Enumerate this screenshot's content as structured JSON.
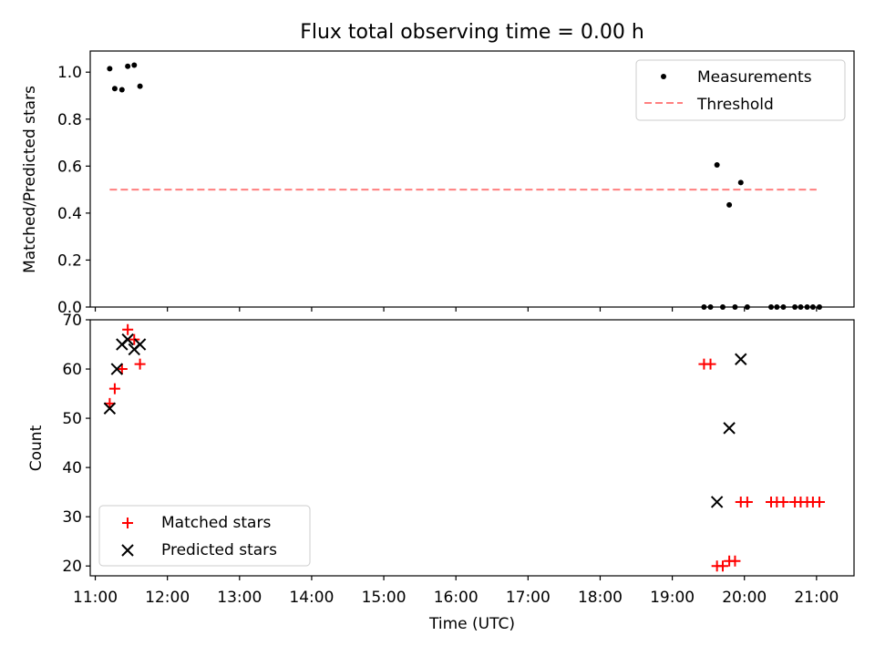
{
  "chart_data": {
    "title": "Flux total observing time = 0.00 h",
    "xlabel": "Time (UTC)",
    "x_ticks": [
      "11:00",
      "12:00",
      "13:00",
      "14:00",
      "15:00",
      "16:00",
      "17:00",
      "18:00",
      "19:00",
      "20:00",
      "21:00"
    ],
    "x_range_hours": [
      10.93,
      21.52
    ],
    "colors": {
      "measurement": "#000000",
      "threshold": "#ff7f7f",
      "matched": "#ff0000",
      "predicted": "#000000"
    },
    "panels": [
      {
        "type": "scatter",
        "ylabel": "Matched/Predicted stars",
        "ylim": [
          0,
          1.09
        ],
        "yticks": [
          0.0,
          0.2,
          0.4,
          0.6,
          0.8,
          1.0
        ],
        "ytick_labels": [
          "0.0",
          "0.2",
          "0.4",
          "0.6",
          "0.8",
          "1.0"
        ],
        "legend_position": "top-right",
        "series": [
          {
            "name": "Measurements",
            "marker": "dot",
            "points": [
              [
                11.2,
                1.015
              ],
              [
                11.27,
                0.93
              ],
              [
                11.37,
                0.925
              ],
              [
                11.45,
                1.025
              ],
              [
                11.54,
                1.03
              ],
              [
                11.62,
                0.94
              ],
              [
                19.44,
                0.0
              ],
              [
                19.53,
                0.0
              ],
              [
                19.62,
                0.605
              ],
              [
                19.7,
                0.0
              ],
              [
                19.79,
                0.435
              ],
              [
                19.87,
                0.0
              ],
              [
                19.95,
                0.53
              ],
              [
                20.04,
                0.0
              ],
              [
                20.37,
                0.0
              ],
              [
                20.45,
                0.0
              ],
              [
                20.54,
                0.0
              ],
              [
                20.7,
                0.0
              ],
              [
                20.78,
                0.0
              ],
              [
                20.87,
                0.0
              ],
              [
                20.95,
                0.0
              ],
              [
                21.04,
                0.0
              ]
            ]
          },
          {
            "name": "Threshold",
            "marker": "dashed-line",
            "points": [
              [
                11.2,
                0.5
              ],
              [
                21.0,
                0.5
              ]
            ]
          }
        ]
      },
      {
        "type": "scatter",
        "ylabel": "Count",
        "ylim": [
          18,
          70
        ],
        "yticks": [
          20,
          30,
          40,
          50,
          60,
          70
        ],
        "ytick_labels": [
          "20",
          "30",
          "40",
          "50",
          "60",
          "70"
        ],
        "legend_position": "bottom-left",
        "series": [
          {
            "name": "Matched stars",
            "marker": "plus",
            "points": [
              [
                11.2,
                53
              ],
              [
                11.27,
                56
              ],
              [
                11.37,
                60
              ],
              [
                11.45,
                68
              ],
              [
                11.54,
                66
              ],
              [
                11.62,
                61
              ],
              [
                19.44,
                61
              ],
              [
                19.53,
                61
              ],
              [
                19.62,
                20
              ],
              [
                19.7,
                20
              ],
              [
                19.79,
                21
              ],
              [
                19.87,
                21
              ],
              [
                19.95,
                33
              ],
              [
                20.04,
                33
              ],
              [
                20.37,
                33
              ],
              [
                20.45,
                33
              ],
              [
                20.54,
                33
              ],
              [
                20.7,
                33
              ],
              [
                20.78,
                33
              ],
              [
                20.87,
                33
              ],
              [
                20.95,
                33
              ],
              [
                21.04,
                33
              ]
            ]
          },
          {
            "name": "Predicted stars",
            "marker": "x",
            "points": [
              [
                11.2,
                52
              ],
              [
                11.3,
                60
              ],
              [
                11.37,
                65
              ],
              [
                11.45,
                66
              ],
              [
                11.54,
                64
              ],
              [
                11.62,
                65
              ],
              [
                19.62,
                33
              ],
              [
                19.79,
                48
              ],
              [
                19.95,
                62
              ]
            ]
          }
        ]
      }
    ]
  }
}
